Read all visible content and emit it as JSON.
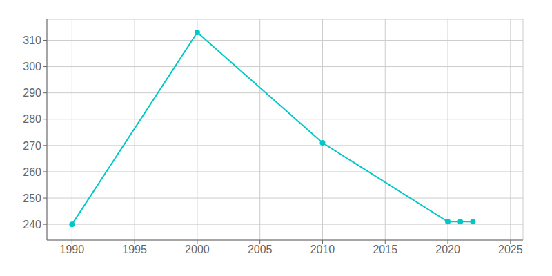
{
  "chart_data": {
    "type": "line",
    "x": [
      1990,
      2000,
      2010,
      2020,
      2021,
      2022
    ],
    "values": [
      240,
      313,
      271,
      241,
      241,
      241
    ],
    "color": "#00c8c8",
    "marker": "circle",
    "xlim": [
      1988,
      2026
    ],
    "ylim": [
      234,
      318
    ],
    "xticks": [
      1990,
      1995,
      2000,
      2005,
      2010,
      2015,
      2020,
      2025
    ],
    "yticks": [
      240,
      250,
      260,
      270,
      280,
      290,
      300,
      310
    ],
    "grid": true
  }
}
